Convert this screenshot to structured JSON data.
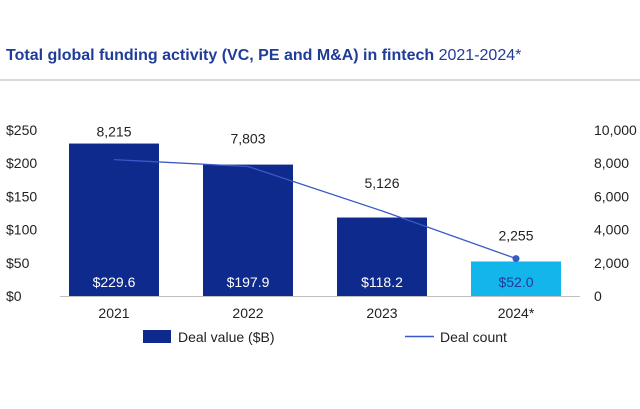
{
  "title": {
    "bold_part": "Total global funding activity (VC, PE and M&A) in fintech",
    "light_part": "2021-2024*"
  },
  "chart_data": {
    "type": "bar",
    "categories": [
      "2021",
      "2022",
      "2023",
      "2024*"
    ],
    "series": [
      {
        "name": "Deal value ($B)",
        "kind": "bar",
        "axis": "left",
        "values": [
          229.6,
          197.9,
          118.2,
          52.0
        ],
        "labels": [
          "$229.6",
          "$197.9",
          "$118.2",
          "$52.0"
        ],
        "colors": [
          "#0e2a8c",
          "#0e2a8c",
          "#0e2a8c",
          "#12b6ea"
        ]
      },
      {
        "name": "Deal count",
        "kind": "line",
        "axis": "right",
        "values": [
          8215,
          7803,
          5126,
          2255
        ],
        "labels": [
          "8,215",
          "7,803",
          "5,126",
          "2,255"
        ],
        "color": "#3a58c9"
      }
    ],
    "left_axis": {
      "range": [
        0,
        250
      ],
      "ticks": [
        0,
        50,
        100,
        150,
        200,
        250
      ],
      "tick_labels": [
        "$0",
        "$50",
        "$100",
        "$150",
        "$200",
        "$250"
      ]
    },
    "right_axis": {
      "range": [
        0,
        10000
      ],
      "ticks": [
        0,
        2000,
        4000,
        6000,
        8000,
        10000
      ],
      "tick_labels": [
        "0",
        "2,000",
        "4,000",
        "6,000",
        "8,000",
        "10,000"
      ]
    },
    "legend": [
      {
        "label": "Deal value ($B)",
        "swatch": "bar",
        "color": "#0e2a8c"
      },
      {
        "label": "Deal count",
        "swatch": "line",
        "color": "#3a58c9"
      }
    ],
    "legend_position": "bottom-center",
    "grid": false
  }
}
